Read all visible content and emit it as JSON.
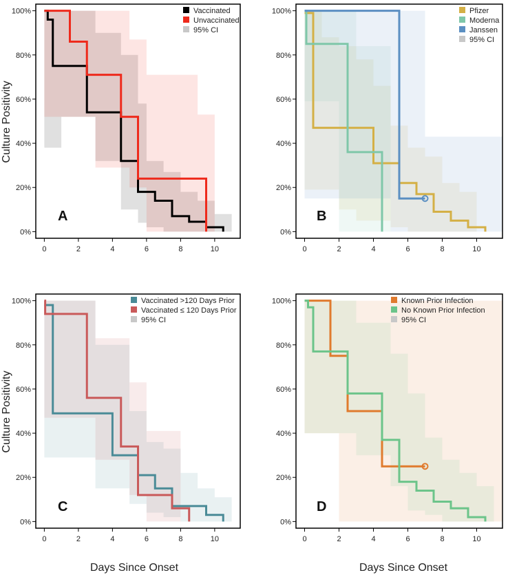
{
  "figure": {
    "y_axis_title": "Culture Positivity",
    "x_axis_title": "Days Since Onset"
  },
  "chart_data": [
    {
      "type": "line",
      "panel": "A",
      "xlabel": "Days Since Onset",
      "ylabel": "Culture Positivity",
      "xlim": [
        -0.5,
        11.5
      ],
      "ylim": [
        -0.03,
        1.03
      ],
      "xticks": [
        "0",
        "2",
        "4",
        "6",
        "8",
        "10"
      ],
      "yticks": [
        "0%",
        "20%",
        "40%",
        "60%",
        "80%",
        "100%"
      ],
      "legend": [
        "Vaccinated",
        "Unvaccinated",
        "95% CI"
      ],
      "legend_colors": [
        "#000000",
        "#ee2a1c",
        "#c8c8c8"
      ],
      "series": [
        {
          "name": "Vaccinated",
          "color": "#000000",
          "x": [
            0,
            0.2,
            0.5,
            2.5,
            4.5,
            5.5,
            6.5,
            7.5,
            8.5,
            9.5,
            10.5
          ],
          "y": [
            1.0,
            0.96,
            0.75,
            0.54,
            0.32,
            0.18,
            0.14,
            0.07,
            0.045,
            0.02,
            0.0
          ],
          "ci_x": [
            0,
            0.5,
            1.0,
            3.0,
            4.5,
            5.5,
            6.0,
            7.0,
            8.0,
            9.0,
            10.0,
            11.0
          ],
          "ci_upper": [
            1.0,
            1.0,
            1.0,
            0.9,
            0.8,
            0.58,
            0.32,
            0.27,
            0.18,
            0.14,
            0.08,
            0.08
          ],
          "ci_lower": [
            0.38,
            0.38,
            0.52,
            0.32,
            0.1,
            0.04,
            0.02,
            0.0,
            0.0,
            0.0,
            0.0,
            0.0
          ]
        },
        {
          "name": "Unvaccinated",
          "color": "#ee2a1c",
          "x": [
            0,
            1.5,
            2.5,
            4.5,
            5.5,
            9.5
          ],
          "y": [
            1.0,
            0.86,
            0.71,
            0.52,
            0.24,
            0.0
          ],
          "ci_x": [
            0,
            3.0,
            5.0,
            6.0,
            9.0,
            10.0
          ],
          "ci_upper": [
            1.0,
            1.0,
            0.87,
            0.71,
            0.53,
            0.0
          ],
          "ci_lower": [
            0.52,
            0.29,
            0.2,
            0.0,
            0.0,
            0.0
          ]
        }
      ]
    },
    {
      "type": "line",
      "panel": "B",
      "xlabel": "Days Since Onset",
      "ylabel": "Culture Positivity",
      "xlim": [
        -0.5,
        11.5
      ],
      "ylim": [
        -0.03,
        1.03
      ],
      "xticks": [
        "0",
        "2",
        "4",
        "6",
        "8",
        "10"
      ],
      "yticks": [
        "0%",
        "20%",
        "40%",
        "60%",
        "80%",
        "100%"
      ],
      "legend": [
        "Pfizer",
        "Moderna",
        "Janssen",
        "95% CI"
      ],
      "legend_colors": [
        "#d4b046",
        "#7fc7a9",
        "#5b8fc2",
        "#c8c8c8"
      ],
      "series": [
        {
          "name": "Pfizer",
          "color": "#d4b046",
          "x": [
            0,
            0.5,
            4.0,
            4.5,
            5.5,
            6.5,
            7.5,
            8.5,
            9.5,
            10.5
          ],
          "y": [
            0.99,
            0.47,
            0.31,
            0.31,
            0.22,
            0.17,
            0.09,
            0.05,
            0.02,
            0.0
          ],
          "ci_x": [
            0,
            1.0,
            2.0,
            3.0,
            4.0,
            5.0,
            6.0,
            7.0,
            8.0,
            9.0,
            10.0
          ],
          "ci_upper": [
            1.0,
            0.88,
            0.84,
            0.78,
            0.66,
            0.48,
            0.38,
            0.34,
            0.22,
            0.18,
            0.08
          ],
          "ci_lower": [
            0.19,
            0.19,
            0.1,
            0.05,
            0.05,
            0.02,
            0.0,
            0.0,
            0.0,
            0.0,
            0.0
          ]
        },
        {
          "name": "Moderna",
          "color": "#7fc7a9",
          "x": [
            0,
            0.1,
            2.5,
            4.5
          ],
          "y": [
            1.0,
            0.85,
            0.36,
            0.0
          ],
          "ci_x": [
            0,
            2.0,
            3.0,
            4.0,
            5.0
          ],
          "ci_upper": [
            1.0,
            1.0,
            0.84,
            0.84,
            0.0
          ],
          "ci_lower": [
            0.59,
            0.0,
            0.0,
            0.0,
            0.0
          ]
        },
        {
          "name": "Janssen",
          "color": "#5b8fc2",
          "x": [
            0,
            5.5,
            7.0
          ],
          "y": [
            1.0,
            0.15,
            0.15
          ],
          "ci_x": [
            0,
            3.0,
            5.0,
            7.0,
            11.5
          ],
          "ci_upper": [
            1.0,
            1.0,
            1.0,
            0.43,
            0.43
          ],
          "ci_lower": [
            0.15,
            0.15,
            0.0,
            0.0,
            0.0
          ]
        }
      ]
    },
    {
      "type": "line",
      "panel": "C",
      "xlabel": "Days Since Onset",
      "ylabel": "Culture Positivity",
      "xlim": [
        -0.5,
        11.5
      ],
      "ylim": [
        -0.03,
        1.03
      ],
      "xticks": [
        "0",
        "2",
        "4",
        "6",
        "8",
        "10"
      ],
      "yticks": [
        "0%",
        "20%",
        "40%",
        "60%",
        "80%",
        "100%"
      ],
      "legend": [
        "Vaccinated >120 Days Prior",
        "Vaccinated ≤ 120 Days Prior",
        "95% CI"
      ],
      "legend_colors": [
        "#4a8b97",
        "#c95a5a",
        "#c8c8c8"
      ],
      "series": [
        {
          "name": "Vaccinated >120 Days Prior",
          "color": "#4a8b97",
          "x": [
            0,
            0.5,
            4.0,
            5.5,
            6.5,
            7.5,
            9.5,
            10.5
          ],
          "y": [
            0.98,
            0.49,
            0.3,
            0.21,
            0.15,
            0.07,
            0.03,
            0.0
          ],
          "ci_x": [
            0,
            1.0,
            3.0,
            5.0,
            6.0,
            7.0,
            8.0,
            9.0,
            10.0,
            11.0
          ],
          "ci_upper": [
            1.0,
            1.0,
            0.8,
            0.5,
            0.36,
            0.33,
            0.22,
            0.15,
            0.11,
            0.11
          ],
          "ci_lower": [
            0.29,
            0.29,
            0.15,
            0.08,
            0.04,
            0.02,
            0.0,
            0.0,
            0.0,
            0.0
          ]
        },
        {
          "name": "Vaccinated ≤ 120 Days Prior",
          "color": "#c95a5a",
          "x": [
            0,
            0.05,
            2.5,
            4.5,
            5.5,
            7.5,
            8.5
          ],
          "y": [
            1.0,
            0.94,
            0.56,
            0.34,
            0.12,
            0.06,
            0.0
          ],
          "ci_x": [
            0,
            3.0,
            5.0,
            6.0,
            8.0
          ],
          "ci_upper": [
            1.0,
            0.83,
            0.63,
            0.41,
            0.2
          ],
          "ci_lower": [
            0.47,
            0.28,
            0.12,
            0.0,
            0.0
          ]
        }
      ]
    },
    {
      "type": "line",
      "panel": "D",
      "xlabel": "Days Since Onset",
      "ylabel": "Culture Positivity",
      "xlim": [
        -0.5,
        11.5
      ],
      "ylim": [
        -0.03,
        1.03
      ],
      "xticks": [
        "0",
        "2",
        "4",
        "6",
        "8",
        "10"
      ],
      "yticks": [
        "0%",
        "20%",
        "40%",
        "60%",
        "80%",
        "100%"
      ],
      "legend": [
        "Known Prior Infection",
        "No Known Prior Infection",
        "95% CI"
      ],
      "legend_colors": [
        "#e07b2e",
        "#6cc48a",
        "#c8c8c8"
      ],
      "series": [
        {
          "name": "Known Prior Infection",
          "color": "#e07b2e",
          "x": [
            0,
            1.5,
            2.5,
            4.5,
            7.0
          ],
          "y": [
            1.0,
            0.75,
            0.5,
            0.25,
            0.25
          ],
          "ci_x": [
            0,
            2.0,
            5.0,
            11.5
          ],
          "ci_upper": [
            1.0,
            1.0,
            1.0,
            0.74
          ],
          "ci_lower": [
            0.4,
            0.0,
            0.0,
            0.0
          ]
        },
        {
          "name": "No Known Prior Infection",
          "color": "#6cc48a",
          "x": [
            0,
            0.2,
            0.5,
            2.5,
            4.5,
            5.5,
            6.5,
            7.5,
            8.5,
            9.5,
            10.5
          ],
          "y": [
            1.0,
            0.97,
            0.77,
            0.58,
            0.37,
            0.18,
            0.14,
            0.09,
            0.06,
            0.02,
            0.0
          ],
          "ci_x": [
            0,
            1.0,
            3.0,
            5.0,
            6.0,
            7.0,
            8.0,
            9.0,
            10.0,
            11.0
          ],
          "ci_upper": [
            1.0,
            1.0,
            0.9,
            0.76,
            0.58,
            0.38,
            0.28,
            0.22,
            0.16,
            0.1
          ],
          "ci_lower": [
            0.4,
            0.4,
            0.3,
            0.16,
            0.05,
            0.03,
            0.0,
            0.0,
            0.0,
            0.0
          ]
        }
      ]
    }
  ]
}
